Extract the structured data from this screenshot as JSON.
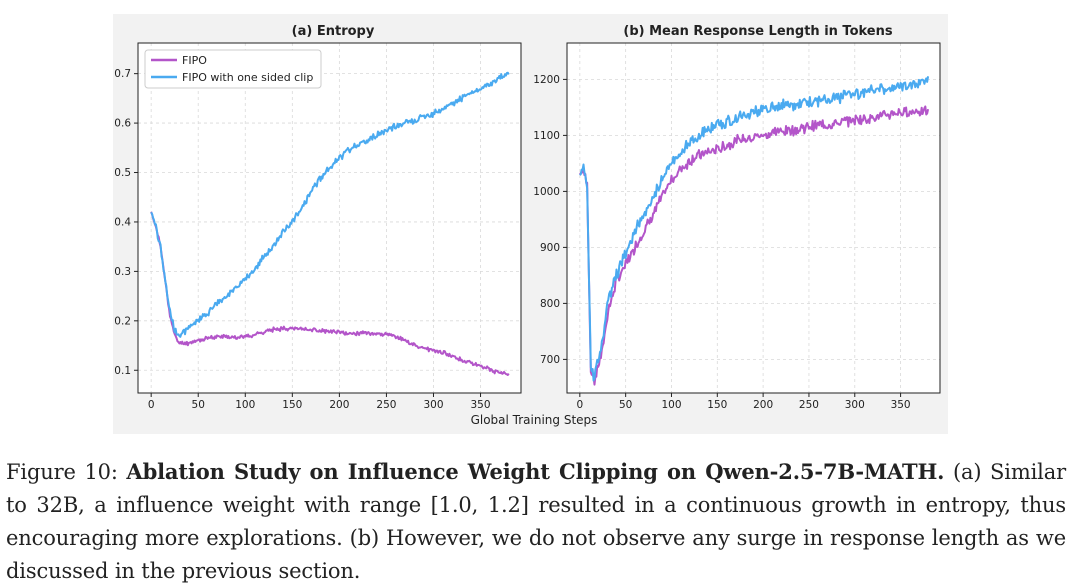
{
  "figure": {
    "xlabel": "Global Training Steps",
    "legend": [
      "FIPO",
      "FIPO with one sided clip"
    ]
  },
  "colors": {
    "fipo": "#b355c9",
    "one_sided": "#4aaaf0"
  },
  "caption": {
    "label": "Figure 10:",
    "title": "Ablation Study on Influence Weight Clipping on Qwen-2.5-7B-MATH.",
    "text": " (a) Similar to 32B, a influence weight with range [1.0, 1.2] resulted in a continuous growth in entropy, thus encouraging more explorations. (b) However, we do not observe any surge in response length as we discussed in the previous section."
  },
  "chart_data": [
    {
      "type": "line",
      "title": "(a) Entropy",
      "xlabel": "Global Training Steps",
      "ylabel": "",
      "xlim": [
        -14,
        393
      ],
      "ylim": [
        0.054,
        0.762
      ],
      "xticks": [
        0,
        50,
        100,
        150,
        200,
        250,
        300,
        350
      ],
      "yticks": [
        0.1,
        0.2,
        0.3,
        0.4,
        0.5,
        0.6,
        0.7
      ],
      "ytick_labels": [
        "0.1",
        "0.2",
        "0.3",
        "0.4",
        "0.5",
        "0.6",
        "0.7"
      ],
      "grid": true,
      "legend_position": "upper-left",
      "series": [
        {
          "name": "FIPO",
          "x": [
            0,
            5,
            10,
            15,
            20,
            25,
            30,
            40,
            50,
            60,
            70,
            80,
            90,
            100,
            110,
            120,
            130,
            140,
            150,
            160,
            170,
            180,
            190,
            200,
            210,
            220,
            230,
            240,
            250,
            260,
            270,
            280,
            290,
            300,
            310,
            320,
            330,
            340,
            350,
            360,
            370,
            380
          ],
          "y": [
            0.42,
            0.39,
            0.35,
            0.28,
            0.21,
            0.17,
            0.155,
            0.155,
            0.16,
            0.165,
            0.168,
            0.168,
            0.167,
            0.168,
            0.172,
            0.178,
            0.182,
            0.185,
            0.185,
            0.184,
            0.182,
            0.18,
            0.178,
            0.176,
            0.174,
            0.175,
            0.176,
            0.174,
            0.172,
            0.168,
            0.16,
            0.15,
            0.145,
            0.14,
            0.136,
            0.13,
            0.12,
            0.115,
            0.108,
            0.102,
            0.095,
            0.092
          ]
        },
        {
          "name": "FIPO with one sided clip",
          "x": [
            0,
            5,
            10,
            15,
            20,
            25,
            30,
            40,
            50,
            60,
            70,
            80,
            90,
            100,
            110,
            120,
            130,
            140,
            150,
            160,
            170,
            180,
            190,
            200,
            210,
            220,
            230,
            240,
            250,
            260,
            270,
            280,
            290,
            300,
            310,
            320,
            330,
            340,
            350,
            360,
            370,
            380
          ],
          "y": [
            0.42,
            0.39,
            0.35,
            0.28,
            0.22,
            0.18,
            0.17,
            0.185,
            0.2,
            0.215,
            0.235,
            0.25,
            0.265,
            0.285,
            0.305,
            0.33,
            0.35,
            0.38,
            0.4,
            0.43,
            0.46,
            0.49,
            0.51,
            0.53,
            0.545,
            0.555,
            0.565,
            0.575,
            0.585,
            0.595,
            0.6,
            0.605,
            0.612,
            0.62,
            0.63,
            0.64,
            0.65,
            0.66,
            0.67,
            0.68,
            0.69,
            0.7
          ]
        }
      ]
    },
    {
      "type": "line",
      "title": "(b) Mean Response Length in Tokens",
      "xlabel": "",
      "ylabel": "",
      "xlim": [
        -14,
        393
      ],
      "ylim": [
        640,
        1265
      ],
      "xticks": [
        0,
        50,
        100,
        150,
        200,
        250,
        300,
        350
      ],
      "yticks": [
        700,
        800,
        900,
        1000,
        1100,
        1200
      ],
      "ytick_labels": [
        "700",
        "800",
        "900",
        "1000",
        "1100",
        "1200"
      ],
      "grid": true,
      "series": [
        {
          "name": "FIPO",
          "x": [
            0,
            4,
            8,
            12,
            16,
            20,
            25,
            30,
            40,
            50,
            60,
            70,
            80,
            90,
            100,
            110,
            120,
            130,
            140,
            150,
            160,
            170,
            180,
            190,
            200,
            210,
            220,
            230,
            240,
            250,
            260,
            270,
            280,
            290,
            300,
            310,
            320,
            330,
            340,
            350,
            360,
            370,
            380
          ],
          "y": [
            1030,
            1040,
            1010,
            680,
            660,
            690,
            720,
            780,
            840,
            870,
            900,
            930,
            960,
            990,
            1020,
            1040,
            1055,
            1065,
            1070,
            1075,
            1082,
            1090,
            1095,
            1098,
            1100,
            1105,
            1108,
            1110,
            1112,
            1115,
            1118,
            1120,
            1122,
            1125,
            1128,
            1130,
            1132,
            1135,
            1138,
            1140,
            1142,
            1145,
            1140
          ]
        },
        {
          "name": "FIPO with one sided clip",
          "x": [
            0,
            4,
            8,
            12,
            16,
            20,
            25,
            30,
            40,
            50,
            60,
            70,
            80,
            90,
            100,
            110,
            120,
            130,
            140,
            150,
            160,
            170,
            180,
            190,
            200,
            210,
            220,
            230,
            240,
            250,
            260,
            270,
            280,
            290,
            300,
            310,
            320,
            330,
            340,
            350,
            360,
            370,
            380
          ],
          "y": [
            1030,
            1045,
            1010,
            690,
            665,
            700,
            735,
            800,
            850,
            890,
            930,
            960,
            990,
            1020,
            1050,
            1070,
            1085,
            1100,
            1110,
            1118,
            1125,
            1130,
            1135,
            1140,
            1145,
            1150,
            1152,
            1155,
            1158,
            1160,
            1162,
            1165,
            1168,
            1170,
            1175,
            1178,
            1180,
            1182,
            1185,
            1188,
            1190,
            1195,
            1200
          ]
        }
      ]
    }
  ]
}
